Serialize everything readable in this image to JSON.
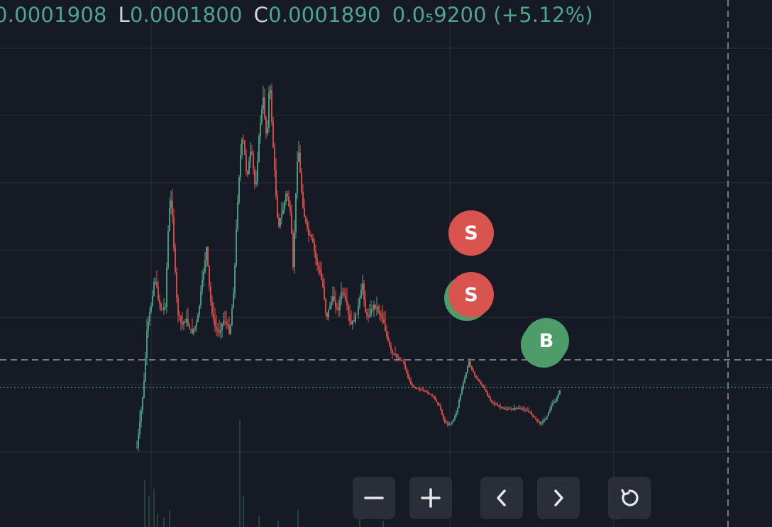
{
  "ohlc": {
    "open_value": "0.0001908",
    "low_key": "L",
    "low_value": "0.0001800",
    "close_key": "C",
    "close_value": "0.0001890",
    "change": "0.0₅9200 (+5.12%)"
  },
  "markers": [
    {
      "label": "S",
      "type": "sell"
    },
    {
      "label": "S",
      "type": "sell"
    },
    {
      "label": "B",
      "type": "buy"
    }
  ],
  "toolbar": {
    "zoom_out_icon": "minus-icon",
    "zoom_in_icon": "plus-icon",
    "scroll_left_icon": "chevron-left-icon",
    "scroll_right_icon": "chevron-right-icon",
    "reset_icon": "reset-icon"
  },
  "colors": {
    "background": "#161a25",
    "up": "#4fa58a",
    "down": "#e0524d",
    "grid": "#2a2e39",
    "button": "#2a2e39"
  }
}
